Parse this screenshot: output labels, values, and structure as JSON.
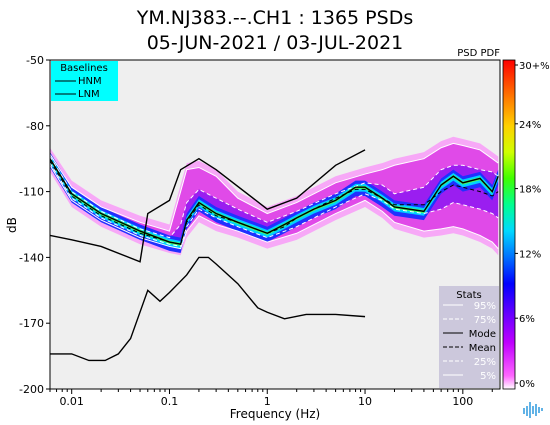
{
  "chart_data": {
    "type": "heatmap",
    "title_line1": "YM.NJ383.--.CH1 : 1365 PSDs",
    "title_line2": "05-JUN-2021 / 03-JUL-2021",
    "xlabel": "Frequency (Hz)",
    "ylabel": "dB",
    "x_scale": "log",
    "xlim": [
      0.006,
      240
    ],
    "ylim": [
      -200,
      -50
    ],
    "x_ticks": [
      {
        "value": 0.01,
        "label": "0.01"
      },
      {
        "value": 0.1,
        "label": "0.1"
      },
      {
        "value": 1,
        "label": "1"
      },
      {
        "value": 10,
        "label": "10"
      },
      {
        "value": 100,
        "label": "100"
      }
    ],
    "y_ticks": [
      {
        "value": -50,
        "label": "-50"
      },
      {
        "value": -80,
        "label": "-80"
      },
      {
        "value": -110,
        "label": "-110"
      },
      {
        "value": -140,
        "label": "-140"
      },
      {
        "value": -170,
        "label": "-170"
      },
      {
        "value": -200,
        "label": "-200"
      }
    ],
    "colorbar": {
      "label": "PSD PDF",
      "ticks": [
        "0%",
        "6%",
        "12%",
        "18%",
        "24%",
        "30+%"
      ],
      "colors": [
        "#ffffff",
        "#ff55ff",
        "#c000ff",
        "#6600ff",
        "#0000ff",
        "#0088ff",
        "#00e0ff",
        "#00ff88",
        "#66ff00",
        "#e0ff00",
        "#ffd000",
        "#ff8000",
        "#ff2000",
        "#ff0000"
      ]
    },
    "baselines_legend": {
      "title": "Baselines",
      "entries": [
        "HNM",
        "LNM"
      ],
      "background": "#00ffff"
    },
    "stats_legend": {
      "title": "Stats",
      "entries": [
        {
          "label": "95%",
          "style": "solid",
          "color": "#ffffff"
        },
        {
          "label": "75%",
          "style": "dashed",
          "color": "#ffffff"
        },
        {
          "label": "Mode",
          "style": "solid",
          "color": "#000000"
        },
        {
          "label": "Mean",
          "style": "dashed",
          "color": "#000000"
        },
        {
          "label": "25%",
          "style": "dashed",
          "color": "#ffffff"
        },
        {
          "label": "5%",
          "style": "solid",
          "color": "#ffffff"
        }
      ],
      "background": "#ccc8dc"
    },
    "series": [
      {
        "name": "HNM",
        "color": "#000000",
        "style": "solid",
        "x": [
          0.006,
          0.01,
          0.02,
          0.05,
          0.06,
          0.1,
          0.13,
          0.2,
          0.3,
          1.0,
          2.0,
          5.0,
          10.0
        ],
        "y": [
          -130,
          -132,
          -135,
          -142,
          -120,
          -114,
          -100,
          -95,
          -100,
          -118,
          -113,
          -98,
          -91
        ]
      },
      {
        "name": "LNM",
        "color": "#000000",
        "style": "solid",
        "x": [
          0.006,
          0.01,
          0.015,
          0.022,
          0.03,
          0.04,
          0.06,
          0.08,
          0.1,
          0.15,
          0.2,
          0.25,
          0.3,
          0.5,
          0.8,
          1.0,
          1.5,
          2.5,
          5.0,
          10.0
        ],
        "y": [
          -184,
          -184,
          -187,
          -187,
          -184,
          -177,
          -155,
          -160,
          -156,
          -148,
          -140,
          -140,
          -143,
          -152,
          -163,
          -165,
          -168,
          -166,
          -166,
          -167
        ]
      },
      {
        "name": "Mode",
        "color": "#000000",
        "style": "solid",
        "x": [
          0.006,
          0.01,
          0.02,
          0.05,
          0.1,
          0.13,
          0.15,
          0.2,
          0.3,
          0.5,
          1.0,
          1.5,
          2.0,
          3.0,
          5.0,
          8.0,
          10.0,
          15.0,
          20.0,
          40.0,
          60.0,
          80.0,
          100.0,
          150.0,
          200.0,
          230.0
        ],
        "y": [
          -95,
          -111,
          -120,
          -128,
          -133,
          -134,
          -123,
          -115,
          -120,
          -124,
          -129,
          -125,
          -122,
          -118,
          -114,
          -108,
          -108,
          -113,
          -117,
          -119,
          -107,
          -103,
          -106,
          -104,
          -110,
          -103
        ]
      },
      {
        "name": "Mean",
        "color": "#000000",
        "style": "dashed",
        "x": [
          0.006,
          0.01,
          0.02,
          0.05,
          0.1,
          0.13,
          0.15,
          0.2,
          0.3,
          0.5,
          1.0,
          1.5,
          2.0,
          3.0,
          5.0,
          8.0,
          10.0,
          15.0,
          20.0,
          40.0,
          60.0,
          80.0,
          100.0,
          150.0,
          200.0,
          230.0
        ],
        "y": [
          -96,
          -112,
          -121,
          -129,
          -133,
          -134,
          -124,
          -116,
          -121,
          -124,
          -129,
          -126,
          -122,
          -118,
          -113,
          -109,
          -109,
          -113,
          -116,
          -116,
          -110,
          -107,
          -108,
          -110,
          -112,
          -110
        ]
      },
      {
        "name": "95%",
        "color": "#ffffff",
        "style": "solid",
        "x": [
          0.006,
          0.01,
          0.02,
          0.05,
          0.1,
          0.13,
          0.15,
          0.2,
          0.3,
          0.5,
          1.0,
          2.0,
          5.0,
          10.0,
          15.0,
          20.0,
          40.0,
          60.0,
          80.0,
          100.0,
          150.0,
          200.0,
          230.0
        ],
        "y": [
          -93,
          -108,
          -117,
          -124,
          -128,
          -110,
          -100,
          -99,
          -103,
          -113,
          -120,
          -115,
          -106,
          -102,
          -100,
          -98,
          -95,
          -90,
          -88,
          -89,
          -91,
          -95,
          -97
        ]
      },
      {
        "name": "75%",
        "color": "#ffffff",
        "style": "dashed",
        "x": [
          0.006,
          0.01,
          0.02,
          0.05,
          0.1,
          0.13,
          0.15,
          0.2,
          0.3,
          0.5,
          1.0,
          2.0,
          5.0,
          10.0,
          15.0,
          20.0,
          40.0,
          60.0,
          80.0,
          100.0,
          150.0,
          200.0,
          230.0
        ],
        "y": [
          -94,
          -110,
          -119,
          -127,
          -131,
          -125,
          -115,
          -109,
          -113,
          -118,
          -124,
          -119,
          -111,
          -106,
          -107,
          -111,
          -108,
          -100,
          -98,
          -98,
          -100,
          -101,
          -103
        ]
      },
      {
        "name": "25%",
        "color": "#ffffff",
        "style": "dashed",
        "x": [
          0.006,
          0.01,
          0.02,
          0.05,
          0.1,
          0.13,
          0.15,
          0.2,
          0.3,
          0.5,
          1.0,
          2.0,
          5.0,
          10.0,
          15.0,
          20.0,
          40.0,
          60.0,
          80.0,
          100.0,
          150.0,
          200.0,
          230.0
        ],
        "y": [
          -97,
          -113,
          -122,
          -130,
          -134,
          -135,
          -126,
          -118,
          -122,
          -126,
          -131,
          -126,
          -117,
          -111,
          -114,
          -118,
          -120,
          -118,
          -115,
          -116,
          -118,
          -120,
          -122
        ]
      },
      {
        "name": "5%",
        "color": "#ffffff",
        "style": "solid",
        "x": [
          0.006,
          0.01,
          0.02,
          0.05,
          0.1,
          0.13,
          0.15,
          0.2,
          0.3,
          0.5,
          1.0,
          2.0,
          5.0,
          10.0,
          15.0,
          20.0,
          40.0,
          60.0,
          80.0,
          100.0,
          150.0,
          200.0,
          230.0
        ],
        "y": [
          -98,
          -114,
          -123,
          -131,
          -135,
          -136,
          -128,
          -121,
          -125,
          -128,
          -133,
          -129,
          -120,
          -114,
          -119,
          -124,
          -128,
          -127,
          -126,
          -127,
          -130,
          -133,
          -136
        ]
      }
    ]
  }
}
